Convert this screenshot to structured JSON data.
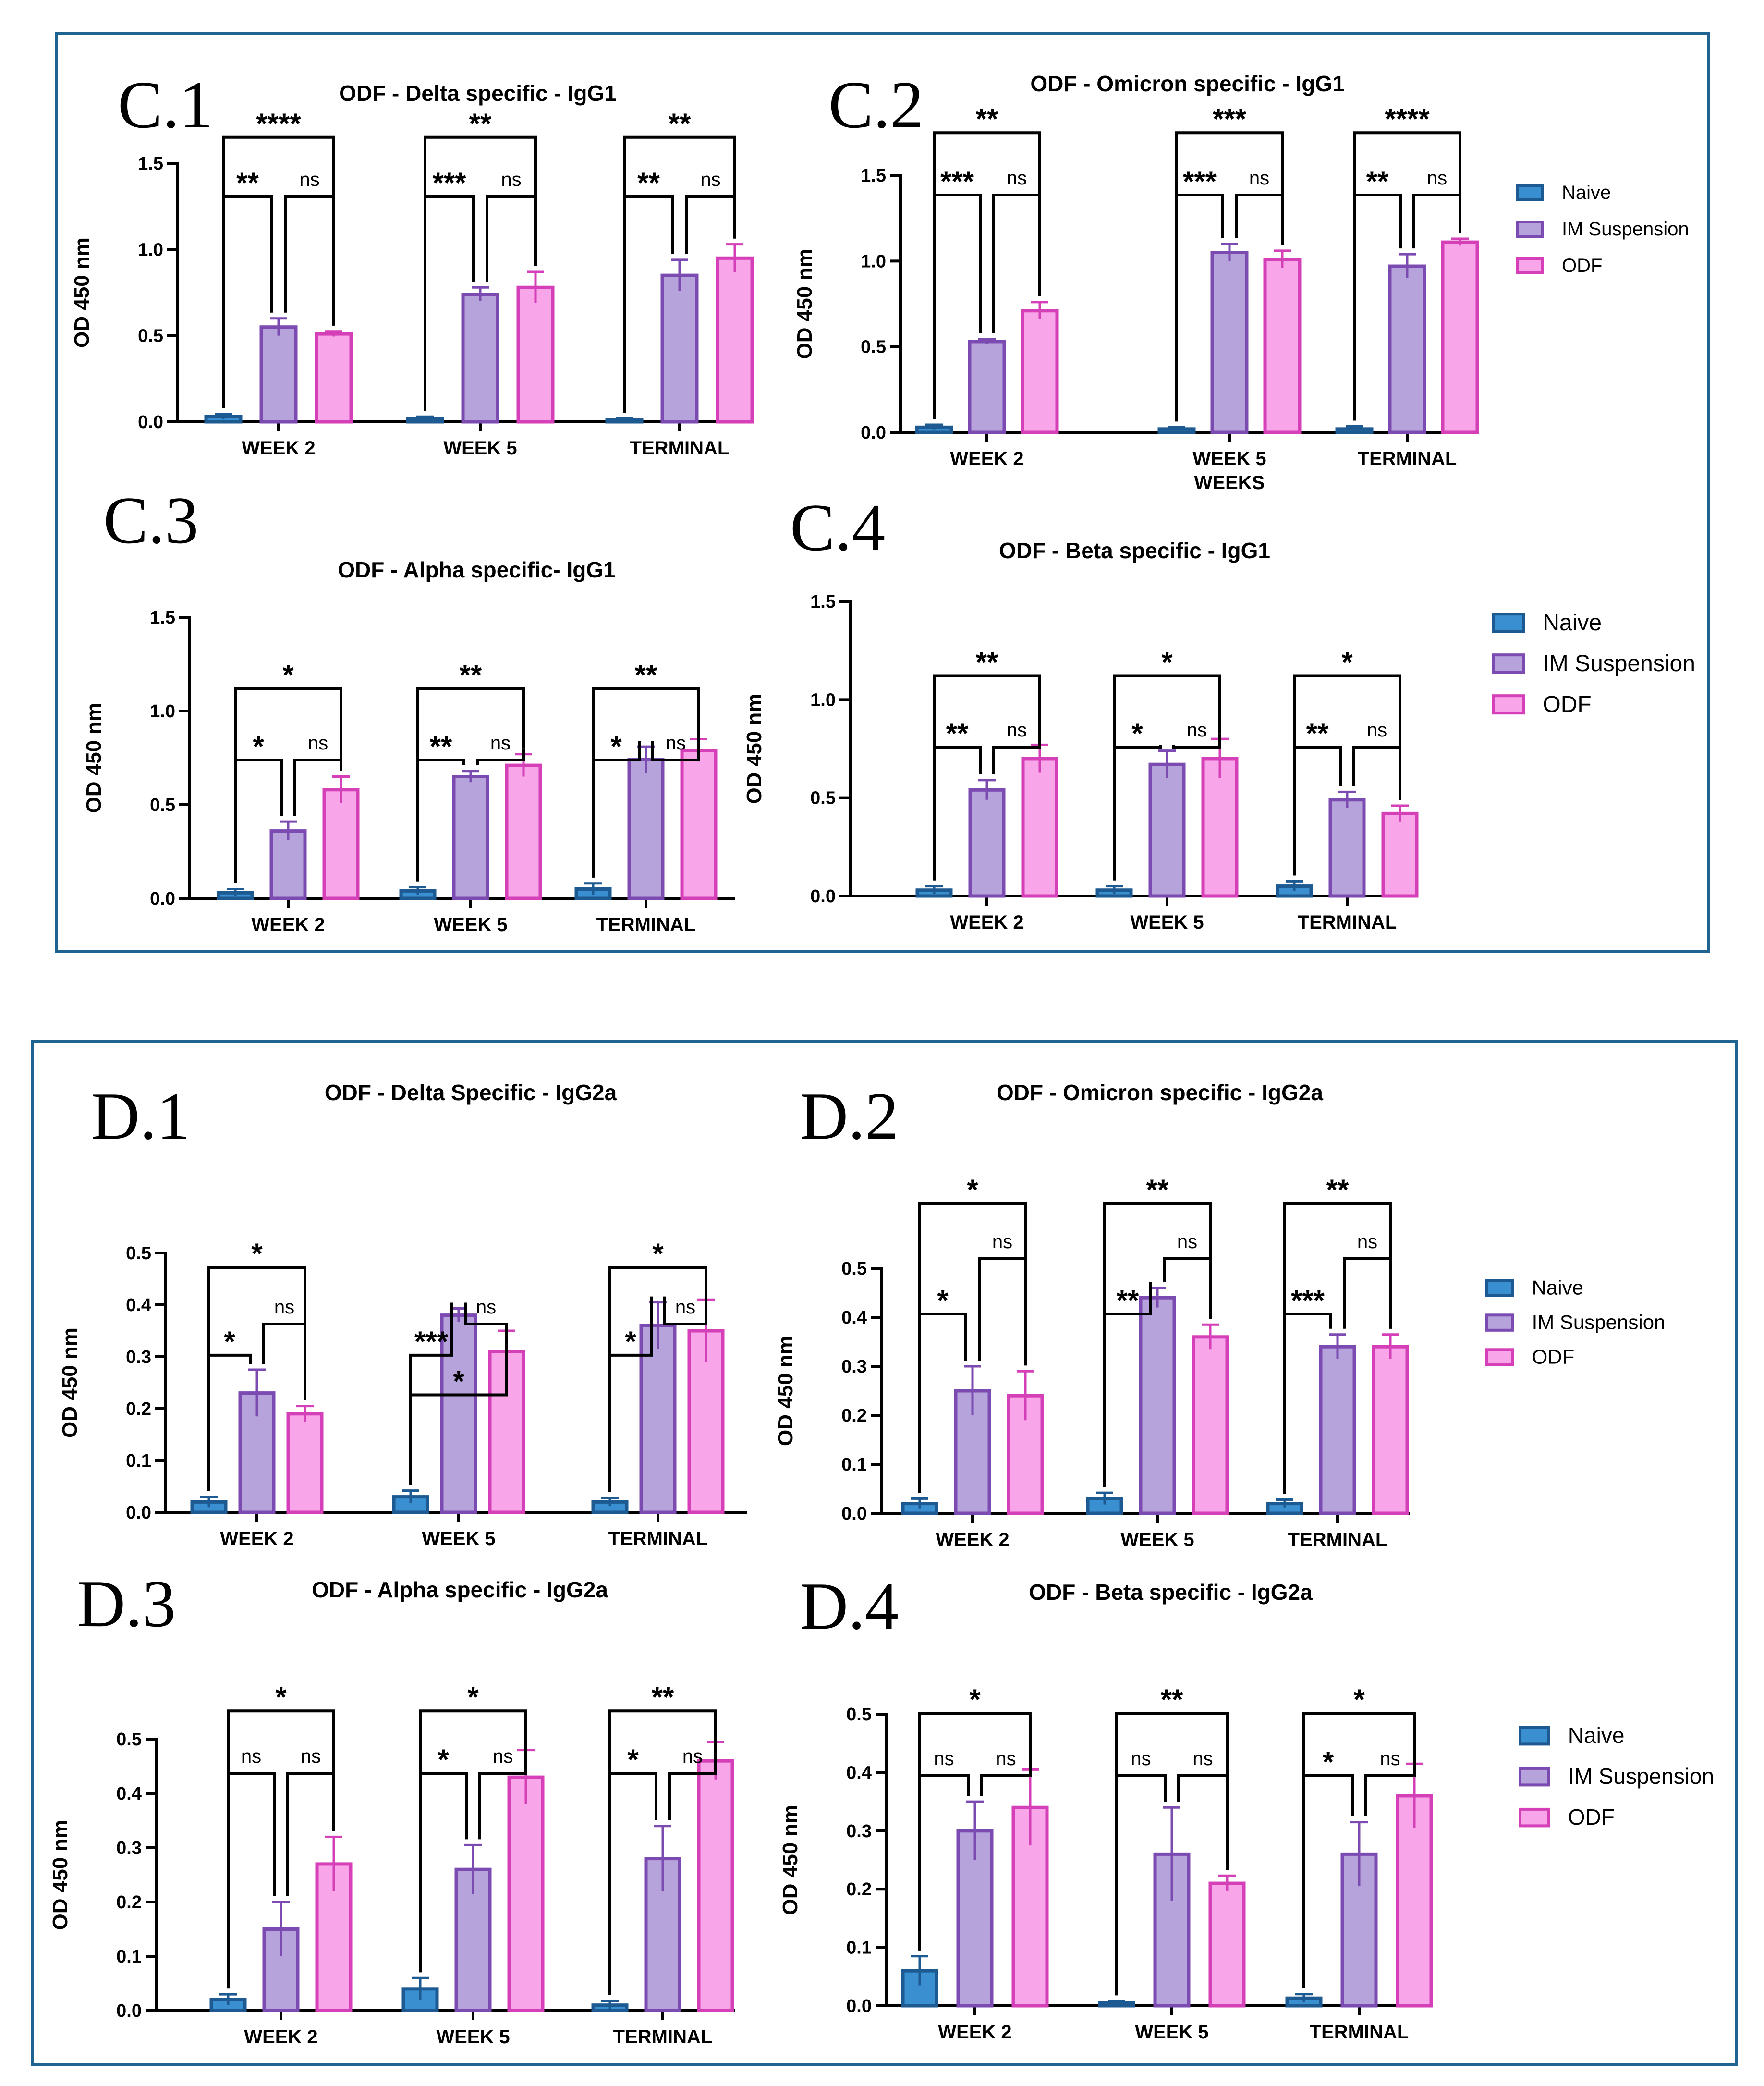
{
  "colors": {
    "frame": "#1f6391",
    "naive_fill": "#3a8fd0",
    "naive_stroke": "#1d5a92",
    "im_fill": "#b6a3dc",
    "im_stroke": "#7b4bb2",
    "odf_fill": "#f8a5ea",
    "odf_stroke": "#d53fb7"
  },
  "legends": [
    {
      "entries": [
        "Naive",
        "IM Suspension",
        "ODF"
      ]
    },
    {
      "entries": [
        "Naive",
        "IM Suspension",
        "ODF"
      ]
    },
    {
      "entries": [
        "Naive",
        "IM Suspension",
        "ODF"
      ]
    },
    {
      "entries": [
        "Naive",
        "IM Suspension",
        "ODF"
      ]
    }
  ],
  "chart_data": [
    {
      "panel": "C.1",
      "type": "bar",
      "title": "ODF - Delta specific - IgG1",
      "ylabel": "OD 450 nm",
      "xlabel": "",
      "ylim": [
        0,
        1.5
      ],
      "yticks": [
        "0.0",
        "0.5",
        "1.0",
        "1.5"
      ],
      "categories": [
        "WEEK 2",
        "WEEK 5",
        "TERMINAL"
      ],
      "series": [
        {
          "name": "Naive",
          "values": [
            0.03,
            0.02,
            0.01
          ],
          "errors": [
            0.015,
            0.01,
            0.01
          ]
        },
        {
          "name": "IM Suspension",
          "values": [
            0.55,
            0.74,
            0.85
          ],
          "errors": [
            0.05,
            0.04,
            0.09
          ]
        },
        {
          "name": "ODF",
          "values": [
            0.51,
            0.78,
            0.95
          ],
          "errors": [
            0.015,
            0.09,
            0.08
          ]
        }
      ],
      "comparisons": [
        [
          "**",
          "ns",
          "****"
        ],
        [
          "***",
          "ns",
          "**"
        ],
        [
          "**",
          "ns",
          "**"
        ]
      ]
    },
    {
      "panel": "C.2",
      "type": "bar",
      "title": "ODF - Omicron specific - IgG1",
      "ylabel": "OD 450 nm",
      "xlabel": "WEEKS",
      "ylim": [
        0,
        1.5
      ],
      "yticks": [
        "0.0",
        "0.5",
        "1.0",
        "1.5"
      ],
      "categories": [
        "WEEK 2",
        "WEEK 5",
        "TERMINAL"
      ],
      "series": [
        {
          "name": "Naive",
          "values": [
            0.03,
            0.02,
            0.02
          ],
          "errors": [
            0.015,
            0.01,
            0.015
          ]
        },
        {
          "name": "IM Suspension",
          "values": [
            0.53,
            1.05,
            0.97
          ],
          "errors": [
            0.015,
            0.05,
            0.07
          ]
        },
        {
          "name": "ODF",
          "values": [
            0.71,
            1.01,
            1.11
          ],
          "errors": [
            0.05,
            0.05,
            0.02
          ]
        }
      ],
      "comparisons": [
        [
          "***",
          "ns",
          "**"
        ],
        [
          "***",
          "ns",
          "***"
        ],
        [
          "**",
          "ns",
          "****"
        ]
      ]
    },
    {
      "panel": "C.3",
      "type": "bar",
      "title": "ODF - Alpha specific- IgG1",
      "ylabel": "OD 450 nm",
      "xlabel": "",
      "ylim": [
        0,
        1.5
      ],
      "yticks": [
        "0.0",
        "0.5",
        "1.0",
        "1.5"
      ],
      "categories": [
        "WEEK 2",
        "WEEK 5",
        "TERMINAL"
      ],
      "series": [
        {
          "name": "Naive",
          "values": [
            0.03,
            0.04,
            0.05
          ],
          "errors": [
            0.02,
            0.02,
            0.03
          ]
        },
        {
          "name": "IM Suspension",
          "values": [
            0.36,
            0.65,
            0.74
          ],
          "errors": [
            0.05,
            0.03,
            0.07
          ]
        },
        {
          "name": "ODF",
          "values": [
            0.58,
            0.71,
            0.79
          ],
          "errors": [
            0.07,
            0.06,
            0.06
          ]
        }
      ],
      "comparisons": [
        [
          "*",
          "ns",
          "*"
        ],
        [
          "**",
          "ns",
          "**"
        ],
        [
          "*",
          "ns",
          "**"
        ]
      ]
    },
    {
      "panel": "C.4",
      "type": "bar",
      "title": "ODF - Beta specific - IgG1",
      "ylabel": "OD 450 nm",
      "xlabel": "",
      "ylim": [
        0,
        1.5
      ],
      "yticks": [
        "0.0",
        "0.5",
        "1.0",
        "1.5"
      ],
      "categories": [
        "WEEK 2",
        "WEEK 5",
        "TERMINAL"
      ],
      "series": [
        {
          "name": "Naive",
          "values": [
            0.03,
            0.03,
            0.05
          ],
          "errors": [
            0.02,
            0.02,
            0.025
          ]
        },
        {
          "name": "IM Suspension",
          "values": [
            0.54,
            0.67,
            0.49
          ],
          "errors": [
            0.05,
            0.07,
            0.04
          ]
        },
        {
          "name": "ODF",
          "values": [
            0.7,
            0.7,
            0.42
          ],
          "errors": [
            0.07,
            0.1,
            0.04
          ]
        }
      ],
      "comparisons": [
        [
          "**",
          "ns",
          "**"
        ],
        [
          "*",
          "ns",
          "*"
        ],
        [
          "**",
          "ns",
          "*"
        ]
      ]
    },
    {
      "panel": "D.1",
      "type": "bar",
      "title": "ODF - Delta Specific - IgG2a",
      "ylabel": "OD 450 nm",
      "xlabel": "",
      "ylim": [
        0,
        0.5
      ],
      "yticks": [
        "0.0",
        "0.1",
        "0.2",
        "0.3",
        "0.4",
        "0.5"
      ],
      "categories": [
        "WEEK 2",
        "WEEK 5",
        "TERMINAL"
      ],
      "series": [
        {
          "name": "Naive",
          "values": [
            0.02,
            0.03,
            0.02
          ],
          "errors": [
            0.01,
            0.012,
            0.008
          ]
        },
        {
          "name": "IM Suspension",
          "values": [
            0.23,
            0.38,
            0.36
          ],
          "errors": [
            0.045,
            0.013,
            0.045
          ]
        },
        {
          "name": "ODF",
          "values": [
            0.19,
            0.31,
            0.35
          ],
          "errors": [
            0.015,
            0.04,
            0.06
          ]
        }
      ],
      "comparisons": [
        [
          "*",
          "ns",
          "*"
        ],
        [
          "***",
          "ns",
          "*"
        ],
        [
          "*",
          "ns",
          "*"
        ]
      ]
    },
    {
      "panel": "D.2",
      "type": "bar",
      "title": "ODF - Omicron specific - IgG2a",
      "ylabel": "OD 450 nm",
      "xlabel": "",
      "ylim": [
        0,
        0.5
      ],
      "yticks": [
        "0.0",
        "0.1",
        "0.2",
        "0.3",
        "0.4",
        "0.5"
      ],
      "categories": [
        "WEEK 2",
        "WEEK 5",
        "TERMINAL"
      ],
      "series": [
        {
          "name": "Naive",
          "values": [
            0.02,
            0.03,
            0.02
          ],
          "errors": [
            0.01,
            0.012,
            0.008
          ]
        },
        {
          "name": "IM Suspension",
          "values": [
            0.25,
            0.44,
            0.34
          ],
          "errors": [
            0.05,
            0.02,
            0.025
          ]
        },
        {
          "name": "ODF",
          "values": [
            0.24,
            0.36,
            0.34
          ],
          "errors": [
            0.05,
            0.025,
            0.025
          ]
        }
      ],
      "comparisons": [
        [
          "*",
          "ns",
          "*"
        ],
        [
          "**",
          "ns",
          "**"
        ],
        [
          "***",
          "ns",
          "**"
        ]
      ]
    },
    {
      "panel": "D.3",
      "type": "bar",
      "title": "ODF - Alpha specific - IgG2a",
      "ylabel": "OD 450 nm",
      "xlabel": "",
      "ylim": [
        0,
        0.5
      ],
      "yticks": [
        "0.0",
        "0.1",
        "0.2",
        "0.3",
        "0.4",
        "0.5"
      ],
      "categories": [
        "WEEK 2",
        "WEEK 5",
        "TERMINAL"
      ],
      "series": [
        {
          "name": "Naive",
          "values": [
            0.02,
            0.04,
            0.01
          ],
          "errors": [
            0.01,
            0.02,
            0.008
          ]
        },
        {
          "name": "IM Suspension",
          "values": [
            0.15,
            0.26,
            0.28
          ],
          "errors": [
            0.05,
            0.045,
            0.06
          ]
        },
        {
          "name": "ODF",
          "values": [
            0.27,
            0.43,
            0.46
          ],
          "errors": [
            0.05,
            0.05,
            0.035
          ]
        }
      ],
      "comparisons": [
        [
          "ns",
          "ns",
          "*"
        ],
        [
          "*",
          "ns",
          "*"
        ],
        [
          "*",
          "ns",
          "**"
        ]
      ]
    },
    {
      "panel": "D.4",
      "type": "bar",
      "title": "ODF - Beta specific - IgG2a",
      "ylabel": "OD 450 nm",
      "xlabel": "",
      "ylim": [
        0,
        0.5
      ],
      "yticks": [
        "0.0",
        "0.1",
        "0.2",
        "0.3",
        "0.4",
        "0.5"
      ],
      "categories": [
        "WEEK 2",
        "WEEK 5",
        "TERMINAL"
      ],
      "series": [
        {
          "name": "Naive",
          "values": [
            0.06,
            0.005,
            0.013
          ],
          "errors": [
            0.025,
            0.003,
            0.007
          ]
        },
        {
          "name": "IM Suspension",
          "values": [
            0.3,
            0.26,
            0.26
          ],
          "errors": [
            0.05,
            0.08,
            0.055
          ]
        },
        {
          "name": "ODF",
          "values": [
            0.34,
            0.21,
            0.36
          ],
          "errors": [
            0.065,
            0.013,
            0.055
          ]
        }
      ],
      "comparisons": [
        [
          "ns",
          "ns",
          "*"
        ],
        [
          "ns",
          "ns",
          "**"
        ],
        [
          "*",
          "ns",
          "*"
        ]
      ]
    }
  ]
}
